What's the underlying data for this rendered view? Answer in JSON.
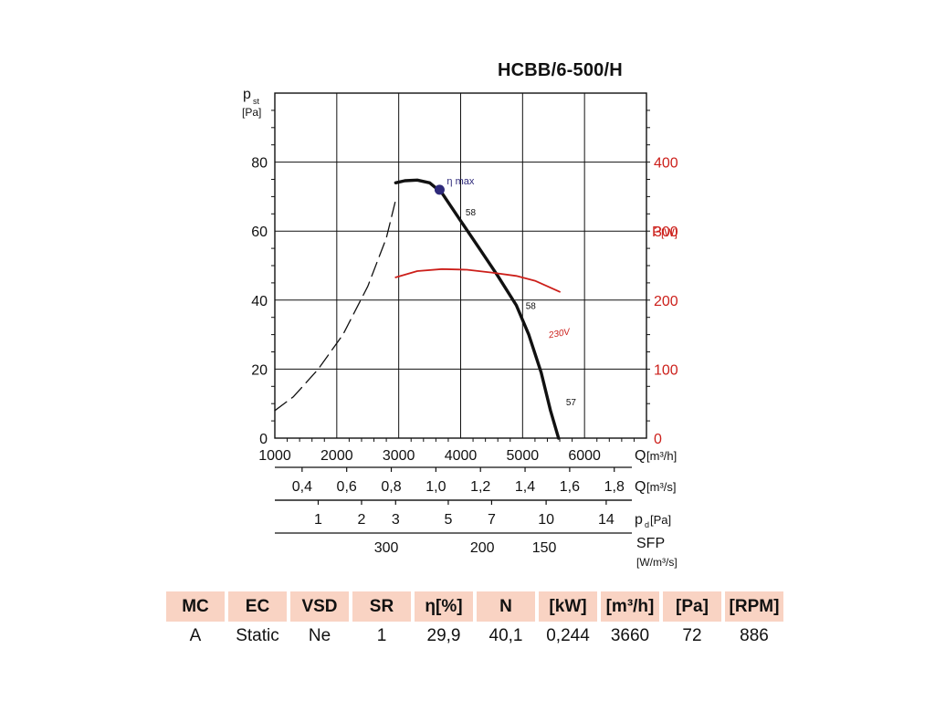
{
  "model": "HCBB/6-500/H",
  "chart_data": {
    "type": "line",
    "title": "HCBB/6-500/H",
    "x_axis": {
      "label": "Q",
      "unit": "[m³/h]",
      "range": [
        1000,
        7000
      ],
      "ticks": [
        1000,
        2000,
        3000,
        4000,
        5000,
        6000
      ]
    },
    "y_axis": {
      "label": "p",
      "label_sub": "st",
      "unit": "[Pa]",
      "range": [
        0,
        100
      ],
      "ticks": [
        0,
        20,
        40,
        60,
        80
      ]
    },
    "y2_axis": {
      "label": "P",
      "unit": "[W]",
      "range": [
        0,
        500
      ],
      "ticks": [
        0,
        100,
        200,
        300,
        400
      ],
      "color": "#cc1f1a"
    },
    "grid": true,
    "series": [
      {
        "kind": "pressure-dashed",
        "axis": "y",
        "color": "#111111",
        "points": [
          [
            1000,
            8
          ],
          [
            1300,
            12
          ],
          [
            1700,
            20
          ],
          [
            2100,
            30
          ],
          [
            2500,
            44
          ],
          [
            2800,
            58
          ],
          [
            2950,
            69
          ]
        ]
      },
      {
        "kind": "pressure",
        "axis": "y",
        "color": "#111111",
        "points": [
          [
            2950,
            74
          ],
          [
            3100,
            74.6
          ],
          [
            3300,
            74.8
          ],
          [
            3500,
            74
          ],
          [
            3600,
            72.5
          ],
          [
            3700,
            71
          ],
          [
            4000,
            63
          ],
          [
            4300,
            55
          ],
          [
            4600,
            47
          ],
          [
            4900,
            38.5
          ],
          [
            5100,
            30
          ],
          [
            5300,
            19
          ],
          [
            5450,
            8
          ],
          [
            5580,
            0
          ]
        ]
      },
      {
        "name": "230V",
        "kind": "power",
        "axis": "y2",
        "color": "#cc1f1a",
        "points": [
          [
            2950,
            233
          ],
          [
            3300,
            242
          ],
          [
            3700,
            245
          ],
          [
            4100,
            244
          ],
          [
            4500,
            240
          ],
          [
            4900,
            235
          ],
          [
            5200,
            228
          ],
          [
            5600,
            212
          ]
        ]
      }
    ],
    "eta_max": {
      "label": "η max",
      "q": 3660,
      "p": 72,
      "color": "#2e2a7a"
    },
    "annotations": [
      {
        "text": "58",
        "q": 4080,
        "p": 64.5
      },
      {
        "text": "58",
        "q": 5050,
        "p": 37.5
      },
      {
        "text": "57",
        "q": 5700,
        "p": 9.5
      },
      {
        "text": "230V",
        "q": 5430,
        "p": 29,
        "color": "#cc1f1a"
      }
    ],
    "aux_scales": [
      {
        "label": "Q",
        "unit": "[m³/s]",
        "ticks": [
          {
            "q": 1440,
            "text": "0,4"
          },
          {
            "q": 2160,
            "text": "0,6"
          },
          {
            "q": 2880,
            "text": "0,8"
          },
          {
            "q": 3600,
            "text": "1,0"
          },
          {
            "q": 4320,
            "text": "1,2"
          },
          {
            "q": 5040,
            "text": "1,4"
          },
          {
            "q": 5760,
            "text": "1,6"
          },
          {
            "q": 6480,
            "text": "1,8"
          }
        ]
      },
      {
        "label": "p",
        "label_sub": "d",
        "unit": "[Pa]",
        "ticks": [
          {
            "q": 1700,
            "text": "1"
          },
          {
            "q": 2400,
            "text": "2"
          },
          {
            "q": 2950,
            "text": "3"
          },
          {
            "q": 3800,
            "text": "5"
          },
          {
            "q": 4500,
            "text": "7"
          },
          {
            "q": 5380,
            "text": "10"
          },
          {
            "q": 6350,
            "text": "14"
          }
        ]
      },
      {
        "label": "SFP",
        "unit": "[W/m³/s]",
        "ticks": [
          {
            "q": 2800,
            "text": "300"
          },
          {
            "q": 4350,
            "text": "200"
          },
          {
            "q": 5350,
            "text": "150"
          }
        ]
      }
    ]
  },
  "table": {
    "headers": [
      "MC",
      "EC",
      "VSD",
      "SR",
      "η[%]",
      "N",
      "[kW]",
      "[m³/h]",
      "[Pa]",
      "[RPM]"
    ],
    "row": [
      "A",
      "Static",
      "Ne",
      "1",
      "29,9",
      "40,1",
      "0,244",
      "3660",
      "72",
      "886"
    ]
  }
}
